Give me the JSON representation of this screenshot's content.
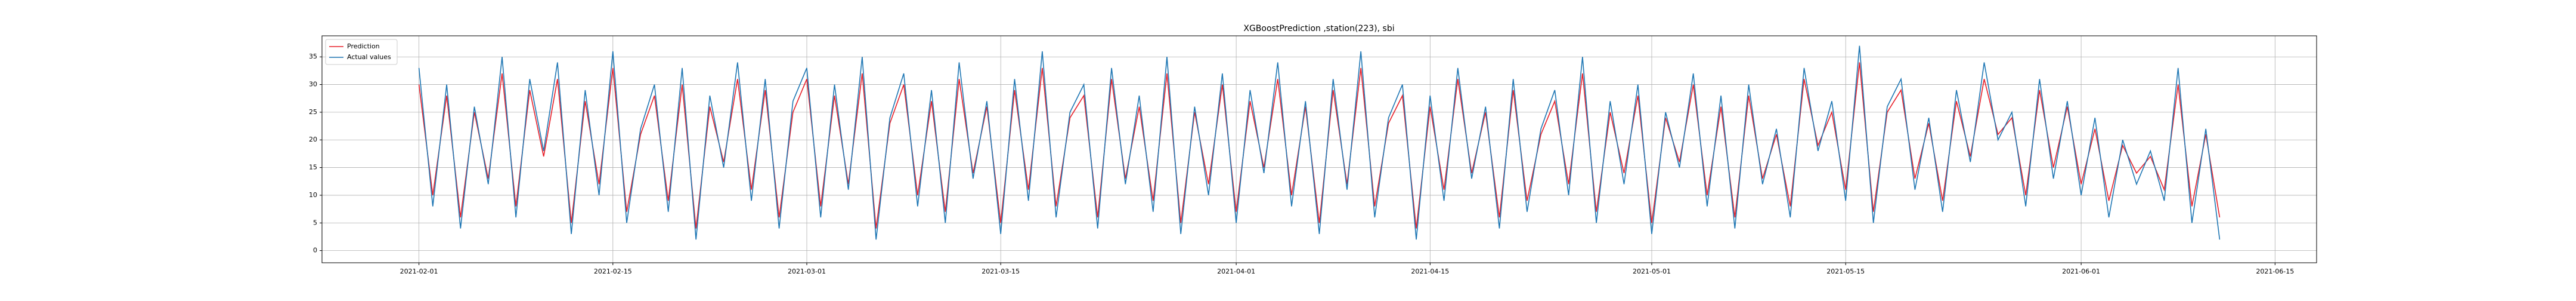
{
  "chart_data": {
    "type": "line",
    "title": "XGBoostPrediction ,station(223), sbi",
    "x": [
      "2021-02-01",
      "2021-02-02",
      "2021-02-03",
      "2021-02-04",
      "2021-02-05",
      "2021-02-06",
      "2021-02-07",
      "2021-02-08",
      "2021-02-09",
      "2021-02-10",
      "2021-02-11",
      "2021-02-12",
      "2021-02-13",
      "2021-02-14",
      "2021-02-15",
      "2021-02-16",
      "2021-02-17",
      "2021-02-18",
      "2021-02-19",
      "2021-02-20",
      "2021-02-21",
      "2021-02-22",
      "2021-02-23",
      "2021-02-24",
      "2021-02-25",
      "2021-02-26",
      "2021-02-27",
      "2021-02-28",
      "2021-03-01",
      "2021-03-02",
      "2021-03-03",
      "2021-03-04",
      "2021-03-05",
      "2021-03-06",
      "2021-03-07",
      "2021-03-08",
      "2021-03-09",
      "2021-03-10",
      "2021-03-11",
      "2021-03-12",
      "2021-03-13",
      "2021-03-14",
      "2021-03-15",
      "2021-03-16",
      "2021-03-17",
      "2021-03-18",
      "2021-03-19",
      "2021-03-20",
      "2021-03-21",
      "2021-03-22",
      "2021-03-23",
      "2021-03-24",
      "2021-03-25",
      "2021-03-26",
      "2021-03-27",
      "2021-03-28",
      "2021-03-29",
      "2021-03-30",
      "2021-03-31",
      "2021-04-01",
      "2021-04-02",
      "2021-04-03",
      "2021-04-04",
      "2021-04-05",
      "2021-04-06",
      "2021-04-07",
      "2021-04-08",
      "2021-04-09",
      "2021-04-10",
      "2021-04-11",
      "2021-04-12",
      "2021-04-13",
      "2021-04-14",
      "2021-04-15",
      "2021-04-16",
      "2021-04-17",
      "2021-04-18",
      "2021-04-19",
      "2021-04-20",
      "2021-04-21",
      "2021-04-22",
      "2021-04-23",
      "2021-04-24",
      "2021-04-25",
      "2021-04-26",
      "2021-04-27",
      "2021-04-28",
      "2021-04-29",
      "2021-04-30",
      "2021-05-01",
      "2021-05-02",
      "2021-05-03",
      "2021-05-04",
      "2021-05-05",
      "2021-05-06",
      "2021-05-07",
      "2021-05-08",
      "2021-05-09",
      "2021-05-10",
      "2021-05-11",
      "2021-05-12",
      "2021-05-13",
      "2021-05-14",
      "2021-05-15",
      "2021-05-16",
      "2021-05-17",
      "2021-05-18",
      "2021-05-19",
      "2021-05-20",
      "2021-05-21",
      "2021-05-22",
      "2021-05-23",
      "2021-05-24",
      "2021-05-25",
      "2021-05-26",
      "2021-05-27",
      "2021-05-28",
      "2021-05-29",
      "2021-05-30",
      "2021-05-31",
      "2021-06-01",
      "2021-06-02",
      "2021-06-03",
      "2021-06-04",
      "2021-06-05",
      "2021-06-06",
      "2021-06-07",
      "2021-06-08",
      "2021-06-09",
      "2021-06-10",
      "2021-06-11"
    ],
    "series": [
      {
        "name": "Prediction",
        "color": "#e8202a",
        "values": [
          30,
          10,
          28,
          6,
          25,
          13,
          32,
          8,
          29,
          17,
          31,
          5,
          27,
          12,
          33,
          7,
          21,
          28,
          9,
          30,
          4,
          26,
          16,
          31,
          11,
          29,
          6,
          25,
          31,
          8,
          28,
          12,
          32,
          4,
          23,
          30,
          10,
          27,
          7,
          31,
          14,
          26,
          5,
          29,
          11,
          33,
          8,
          24,
          28,
          6,
          31,
          13,
          26,
          9,
          32,
          5,
          25,
          12,
          30,
          7,
          27,
          15,
          31,
          10,
          26,
          5,
          29,
          12,
          33,
          8,
          23,
          28,
          4,
          26,
          11,
          31,
          14,
          25,
          6,
          29,
          9,
          21,
          27,
          12,
          32,
          7,
          25,
          14,
          28,
          5,
          24,
          16,
          30,
          10,
          26,
          6,
          28,
          13,
          21,
          8,
          31,
          19,
          25,
          11,
          34,
          7,
          25,
          29,
          13,
          23,
          9,
          27,
          17,
          31,
          21,
          24,
          10,
          29,
          15,
          26,
          12,
          22,
          9,
          19,
          14,
          17,
          11,
          30,
          8,
          21,
          6
        ]
      },
      {
        "name": "Actual values",
        "color": "#1f77b4",
        "values": [
          33,
          8,
          30,
          4,
          26,
          12,
          35,
          6,
          31,
          18,
          34,
          3,
          29,
          10,
          36,
          5,
          22,
          30,
          7,
          33,
          2,
          28,
          15,
          34,
          9,
          31,
          4,
          27,
          33,
          6,
          30,
          11,
          35,
          2,
          24,
          32,
          8,
          29,
          5,
          34,
          13,
          27,
          3,
          31,
          9,
          36,
          6,
          25,
          30,
          4,
          33,
          12,
          28,
          7,
          35,
          3,
          26,
          10,
          32,
          5,
          29,
          14,
          34,
          8,
          27,
          3,
          31,
          11,
          36,
          6,
          24,
          30,
          2,
          28,
          9,
          33,
          13,
          26,
          4,
          31,
          7,
          22,
          29,
          10,
          35,
          5,
          27,
          12,
          30,
          3,
          25,
          15,
          32,
          8,
          28,
          4,
          30,
          12,
          22,
          6,
          33,
          18,
          27,
          9,
          37,
          5,
          26,
          31,
          11,
          24,
          7,
          29,
          16,
          34,
          20,
          25,
          8,
          31,
          13,
          27,
          10,
          24,
          6,
          20,
          12,
          18,
          9,
          33,
          5,
          22,
          2
        ]
      }
    ],
    "xlim": [
      "2021-01-25",
      "2021-06-18"
    ],
    "xticks": [
      "2021-02-01",
      "2021-02-15",
      "2021-03-01",
      "2021-03-15",
      "2021-04-01",
      "2021-04-15",
      "2021-05-01",
      "2021-05-15",
      "2021-06-01",
      "2021-06-15"
    ],
    "ylim": [
      -2.2,
      38.8
    ],
    "yticks": [
      0,
      5,
      10,
      15,
      20,
      25,
      30,
      35
    ],
    "grid": true,
    "legend": "upper left"
  }
}
